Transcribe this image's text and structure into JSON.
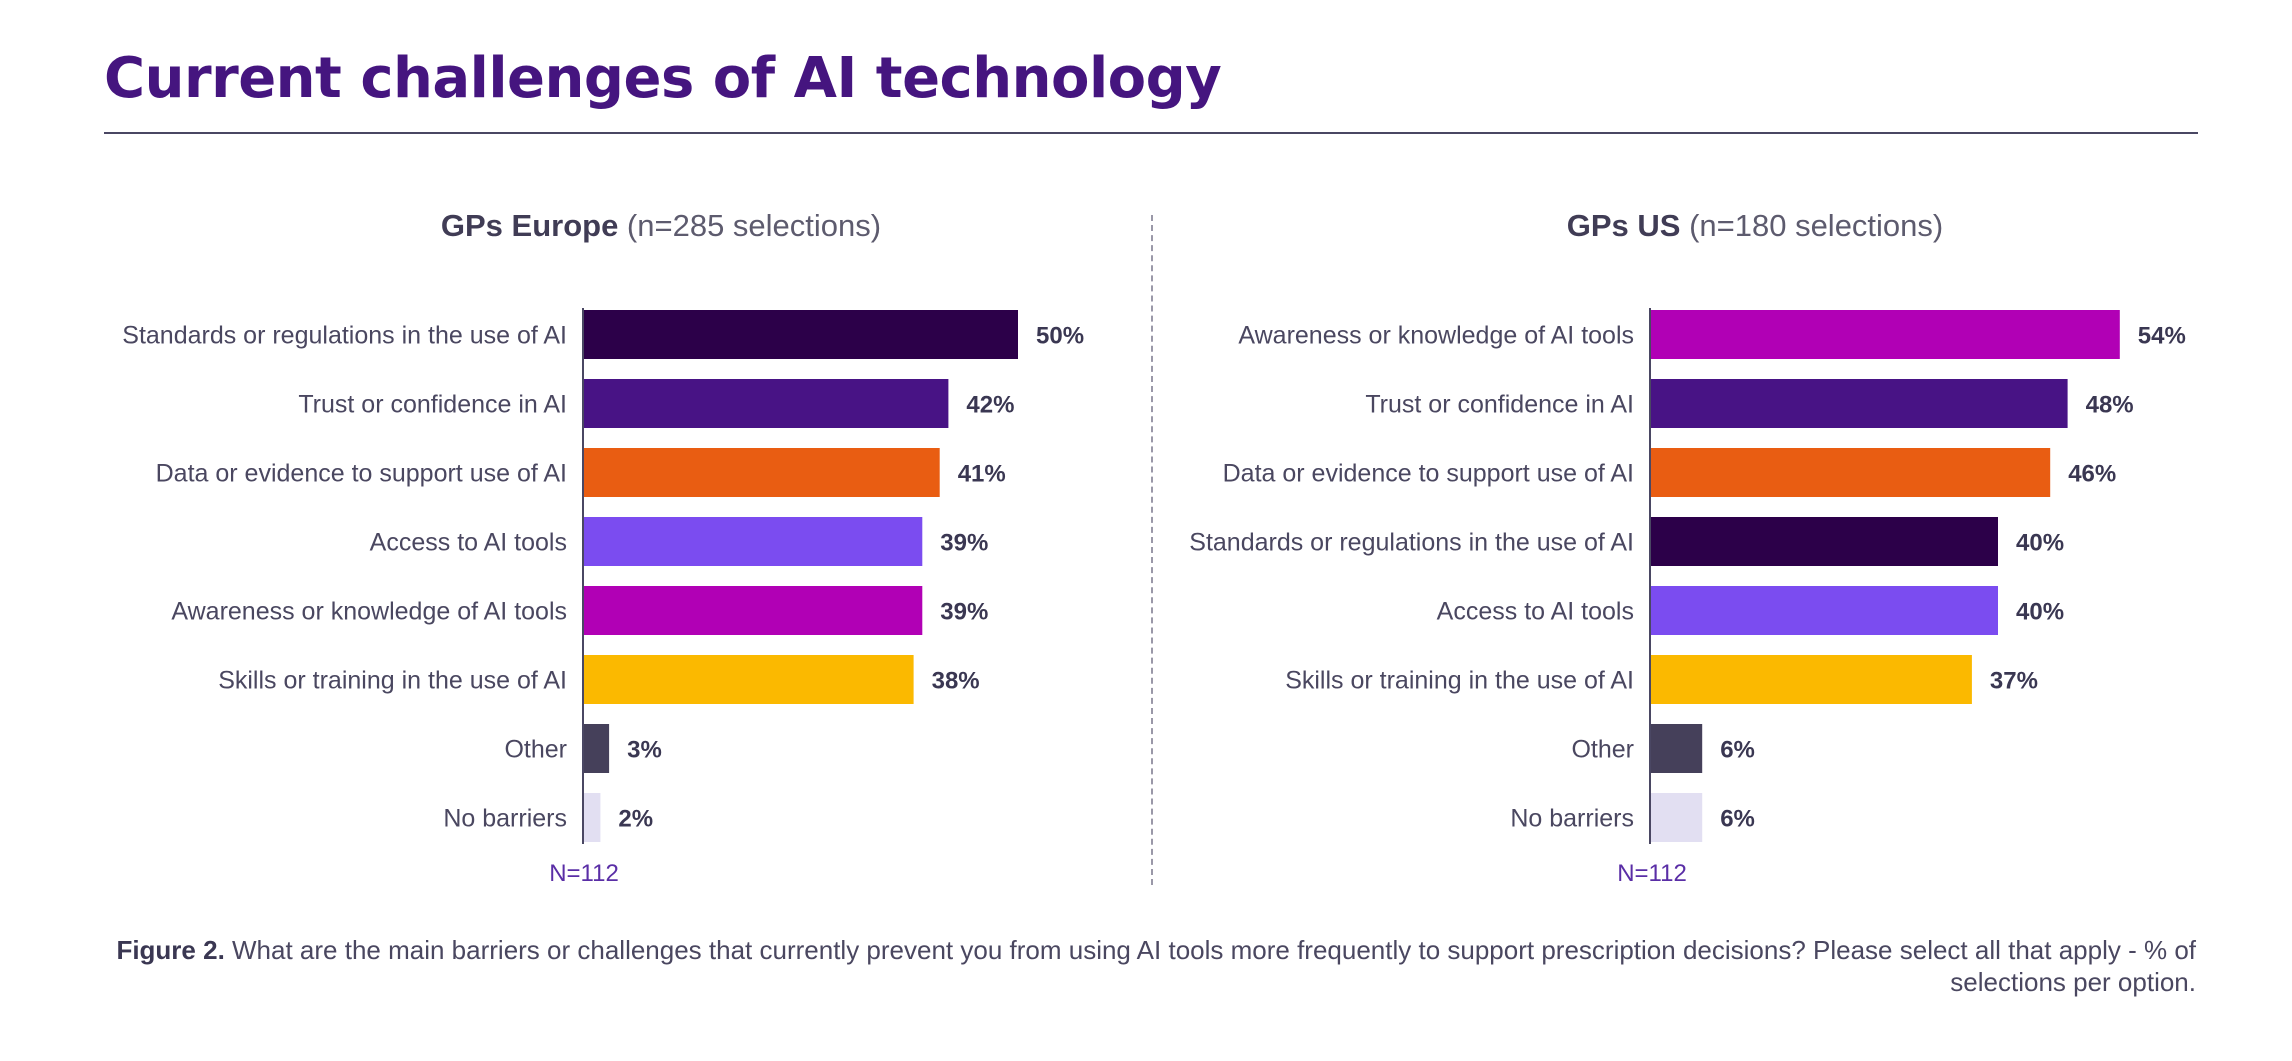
{
  "title": "Current challenges of AI technology",
  "panels": [
    {
      "title_bold": "GPs Europe",
      "title_rest": " (n=285 selections)",
      "n_label": "N=112"
    },
    {
      "title_bold": "GPs US",
      "title_rest": " (n=180 selections)",
      "n_label": "N=112"
    }
  ],
  "caption": {
    "bold": "Figure 2.",
    "text": " What are the main barriers or challenges that currently prevent you from using AI tools more frequently to support prescription decisions? Please select all that apply - % of selections per option."
  },
  "chart_data": [
    {
      "type": "bar",
      "orientation": "horizontal",
      "title": "GPs Europe (n=285 selections)",
      "xlabel": "",
      "ylabel": "",
      "xlim": [
        0,
        100
      ],
      "unit": "%",
      "categories": [
        "Standards or regulations in the use of AI",
        "Trust or confidence in AI",
        "Data or evidence to support use of AI",
        "Access to AI tools",
        "Awareness or knowledge of AI tools",
        "Skills or training in the use of AI",
        "Other",
        "No barriers"
      ],
      "values": [
        50,
        42,
        41,
        39,
        39,
        38,
        3,
        2
      ],
      "labels": [
        "50%",
        "42%",
        "41%",
        "39%",
        "39%",
        "38%",
        "3%",
        "2%"
      ],
      "colors": [
        "#2c0049",
        "#481385",
        "#e95d12",
        "#7b4cf0",
        "#b100b5",
        "#fbb900",
        "#45405a",
        "#e2dff2"
      ],
      "note": "N=112"
    },
    {
      "type": "bar",
      "orientation": "horizontal",
      "title": "GPs US (n=180 selections)",
      "xlabel": "",
      "ylabel": "",
      "xlim": [
        0,
        100
      ],
      "unit": "%",
      "categories": [
        "Awareness or knowledge of AI tools",
        "Trust or confidence in AI",
        "Data or evidence to support use of AI",
        "Standards or regulations in the use of AI",
        "Access to AI tools",
        "Skills or training in the use of AI",
        "Other",
        "No barriers"
      ],
      "values": [
        54,
        48,
        46,
        40,
        40,
        37,
        6,
        6
      ],
      "labels": [
        "54%",
        "48%",
        "46%",
        "40%",
        "40%",
        "37%",
        "6%",
        "6%"
      ],
      "colors": [
        "#b100b5",
        "#481385",
        "#e95d12",
        "#2c0049",
        "#7b4cf0",
        "#fbb900",
        "#45405a",
        "#e2dff2"
      ],
      "note": "N=112"
    }
  ]
}
